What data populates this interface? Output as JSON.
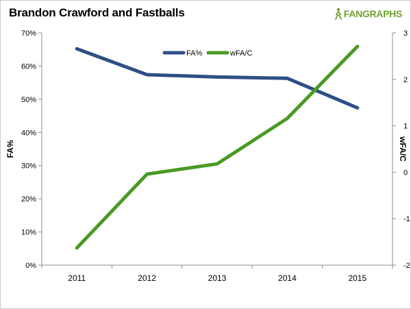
{
  "header": {
    "title": "Brandon Crawford and Fastballs",
    "logo_fan": "FAN",
    "logo_graphs": "GRAPHS"
  },
  "colors": {
    "fa_pct": "#2e4f86",
    "wfa_c": "#4a9a25",
    "axis": "#8c8c8c",
    "logo_green": "#6fa22f"
  },
  "chart_data": {
    "type": "line",
    "title": "Brandon Crawford and Fastballs",
    "categories": [
      "2011",
      "2012",
      "2013",
      "2014",
      "2015"
    ],
    "y_left": {
      "label": "FA%",
      "min": 0,
      "max": 0.7,
      "step": 0.1,
      "tick_labels": [
        "0%",
        "10%",
        "20%",
        "30%",
        "40%",
        "50%",
        "60%",
        "70%"
      ]
    },
    "y_right": {
      "label": "wFA/C",
      "min": -2,
      "max": 3,
      "step": 1,
      "tick_labels": [
        "-2",
        "-1",
        "0",
        "1",
        "2",
        "3"
      ]
    },
    "series": [
      {
        "name": "FA%",
        "axis": "left",
        "color": "#2e4f86",
        "values": [
          0.652,
          0.574,
          0.567,
          0.563,
          0.474
        ]
      },
      {
        "name": "wFA/C",
        "axis": "right",
        "color": "#4a9a25",
        "values": [
          -1.63,
          -0.04,
          0.18,
          1.16,
          2.71
        ]
      }
    ],
    "legend_position": "top-center",
    "grid": false
  }
}
